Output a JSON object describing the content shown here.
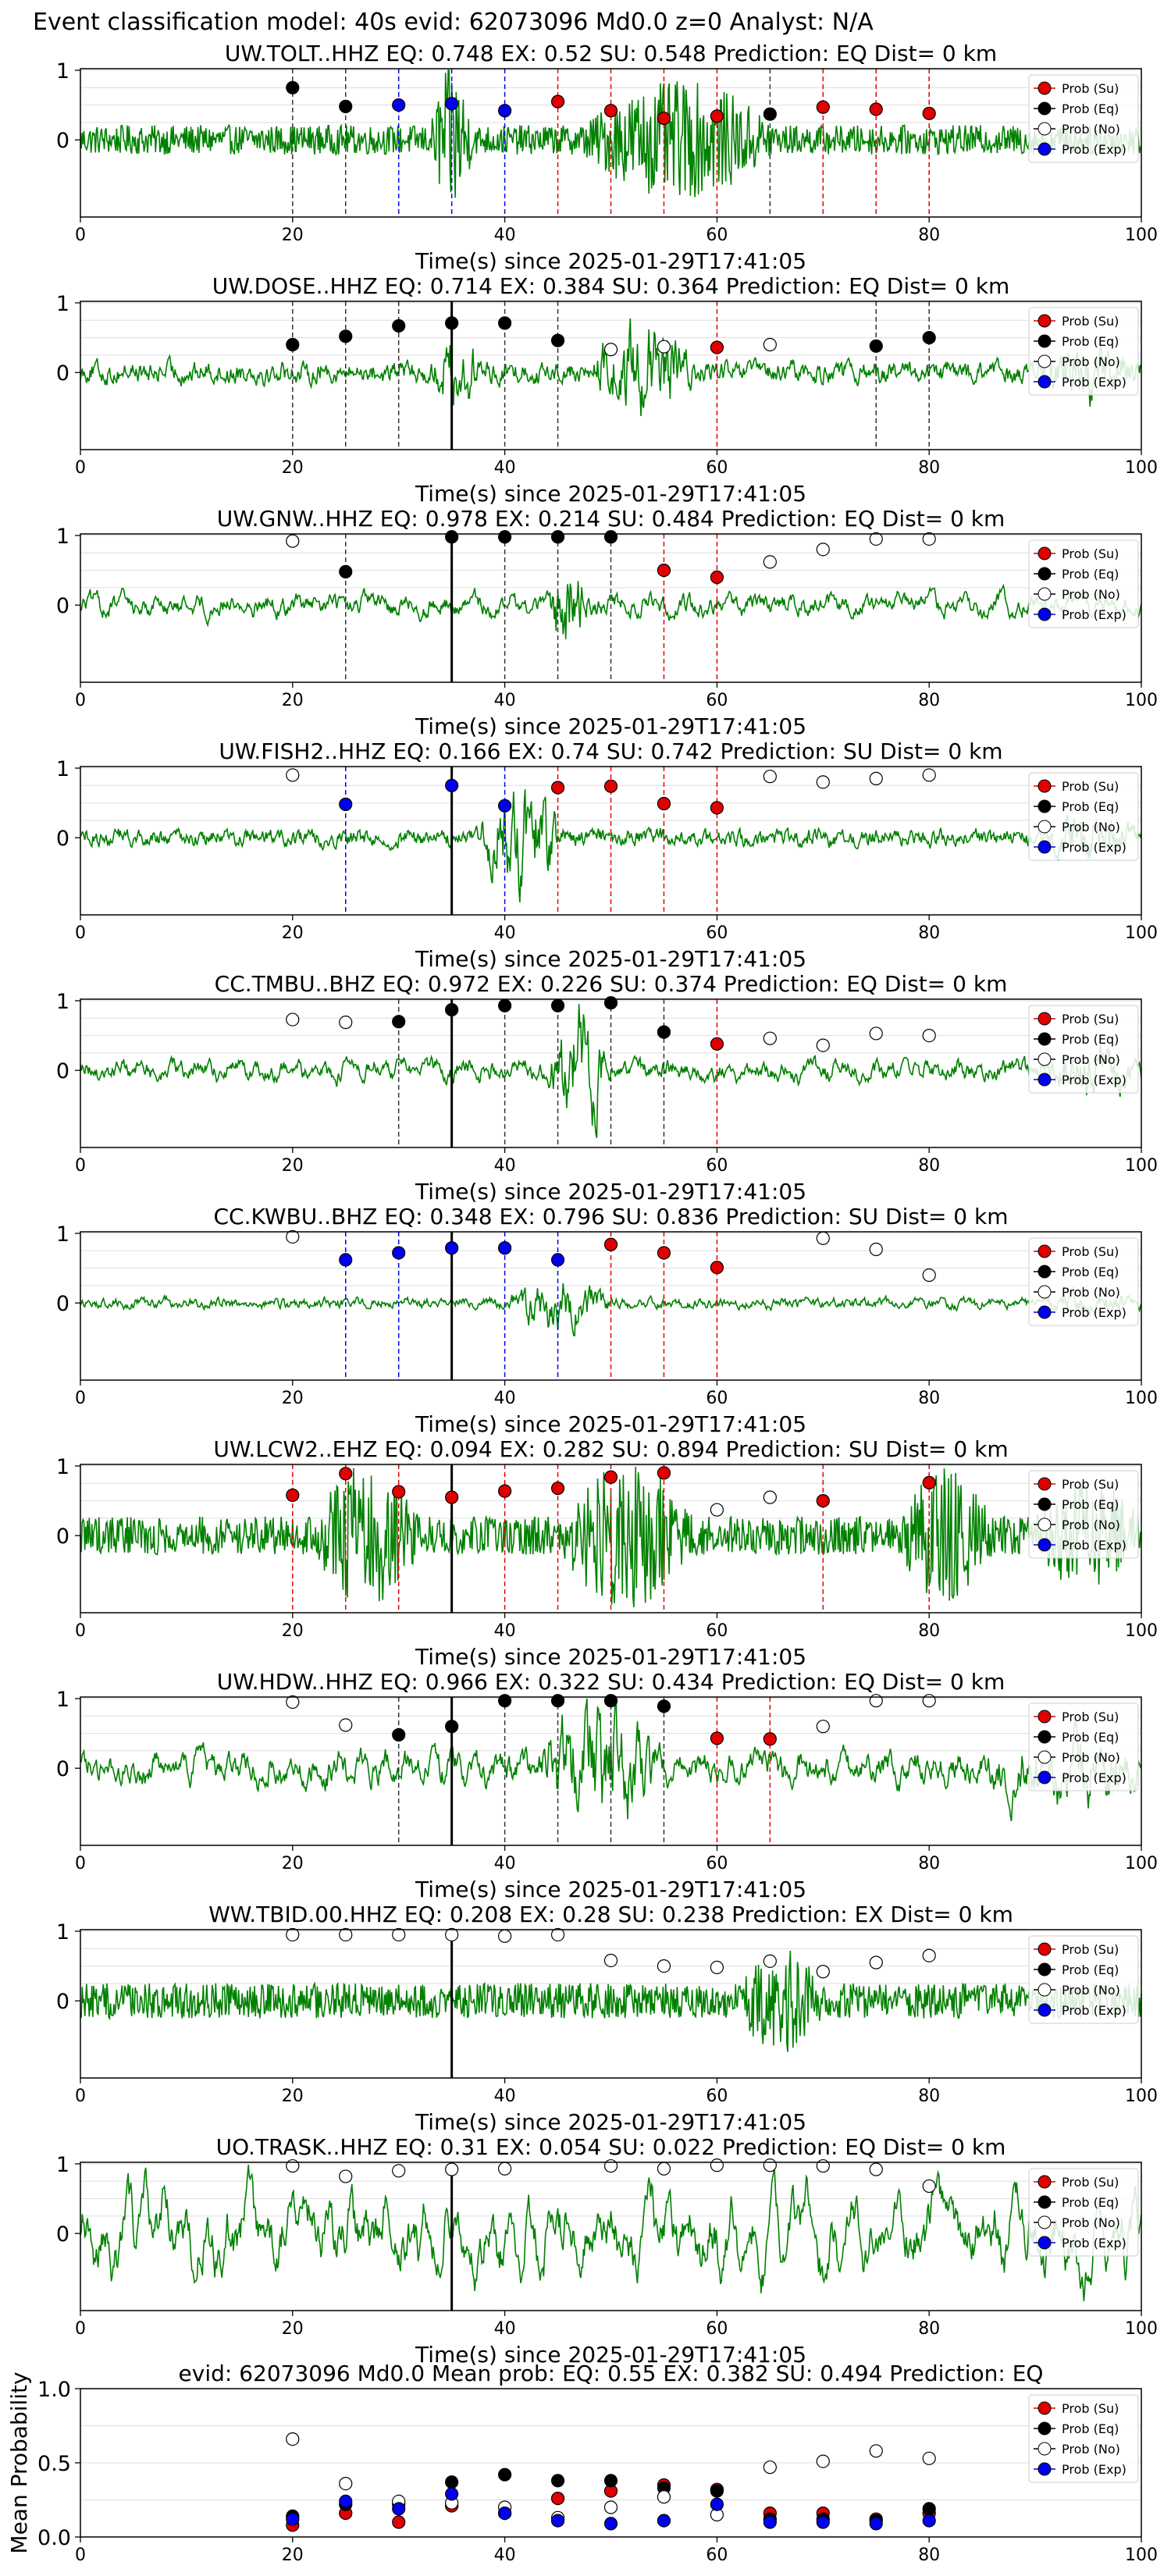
{
  "figure": {
    "title": "Event classification model: 40s evid: 62073096 Md0.0 z=0 Analyst: N/A",
    "colors": {
      "wave": "#008000",
      "su": "#e00000",
      "eq": "#000000",
      "no": "#ffffff",
      "exp": "#0000ee",
      "grid": "#dddddd"
    },
    "legend_labels": [
      "Prob (Su)",
      "Prob (Eq)",
      "Prob (No)",
      "Prob (Exp)"
    ],
    "xlabel": "Time(s) since 2025-01-29T17:41:05",
    "panel_yticks": [
      "0",
      "1"
    ],
    "mean_yticks": [
      "0.0",
      "0.5",
      "1.0"
    ],
    "xticks": [
      "0",
      "20",
      "40",
      "60",
      "80",
      "100"
    ]
  },
  "chart_data": [
    {
      "type": "line",
      "title": "UW.TOLT..HHZ   EQ: 0.748  EX: 0.52  SU: 0.548    Prediction: EQ    Dist= 0 km",
      "noise": 1.0,
      "smooth": 0,
      "bursts": [
        [
          33,
          37,
          4.2
        ],
        [
          47,
          66,
          3.0
        ]
      ],
      "points": [
        {
          "t": 20,
          "p": 0.75,
          "c": "eq"
        },
        {
          "t": 25,
          "p": 0.48,
          "c": "eq"
        },
        {
          "t": 30,
          "p": 0.5,
          "c": "exp"
        },
        {
          "t": 35,
          "p": 0.52,
          "c": "exp"
        },
        {
          "t": 40,
          "p": 0.42,
          "c": "exp"
        },
        {
          "t": 45,
          "p": 0.55,
          "c": "su"
        },
        {
          "t": 50,
          "p": 0.42,
          "c": "su"
        },
        {
          "t": 55,
          "p": 0.31,
          "c": "su"
        },
        {
          "t": 60,
          "p": 0.34,
          "c": "su"
        },
        {
          "t": 65,
          "p": 0.37,
          "c": "eq"
        },
        {
          "t": 70,
          "p": 0.47,
          "c": "su"
        },
        {
          "t": 75,
          "p": 0.44,
          "c": "su"
        },
        {
          "t": 80,
          "p": 0.38,
          "c": "su"
        }
      ]
    },
    {
      "type": "line",
      "title": "UW.DOSE..HHZ   EQ: 0.714  EX: 0.384  SU: 0.364    Prediction: EQ    Dist= 0 km",
      "noise": 0.9,
      "smooth": 1,
      "bursts": [
        [
          33,
          38,
          2.4
        ],
        [
          48,
          58,
          3.5
        ],
        [
          90,
          100,
          1.8
        ]
      ],
      "points": [
        {
          "t": 20,
          "p": 0.4,
          "c": "eq"
        },
        {
          "t": 25,
          "p": 0.52,
          "c": "eq"
        },
        {
          "t": 30,
          "p": 0.67,
          "c": "eq"
        },
        {
          "t": 35,
          "p": 0.71,
          "c": "eq"
        },
        {
          "t": 40,
          "p": 0.71,
          "c": "eq"
        },
        {
          "t": 45,
          "p": 0.46,
          "c": "eq"
        },
        {
          "t": 50,
          "p": 0.33,
          "c": "no"
        },
        {
          "t": 55,
          "p": 0.37,
          "c": "no"
        },
        {
          "t": 60,
          "p": 0.36,
          "c": "su"
        },
        {
          "t": 65,
          "p": 0.4,
          "c": "no"
        },
        {
          "t": 75,
          "p": 0.38,
          "c": "eq"
        },
        {
          "t": 80,
          "p": 0.5,
          "c": "eq"
        }
      ]
    },
    {
      "type": "line",
      "title": "UW.GNW..HHZ   EQ: 0.978  EX: 0.214  SU: 0.484    Prediction: EQ    Dist= 0 km",
      "noise": 0.6,
      "smooth": 3,
      "bursts": [
        [
          44,
          48,
          4.5
        ]
      ],
      "points": [
        {
          "t": 20,
          "p": 0.92,
          "c": "no"
        },
        {
          "t": 25,
          "p": 0.48,
          "c": "eq"
        },
        {
          "t": 35,
          "p": 0.98,
          "c": "eq"
        },
        {
          "t": 40,
          "p": 0.98,
          "c": "eq"
        },
        {
          "t": 45,
          "p": 0.98,
          "c": "eq"
        },
        {
          "t": 50,
          "p": 0.98,
          "c": "eq"
        },
        {
          "t": 55,
          "p": 0.5,
          "c": "su"
        },
        {
          "t": 60,
          "p": 0.4,
          "c": "su"
        },
        {
          "t": 65,
          "p": 0.62,
          "c": "no"
        },
        {
          "t": 70,
          "p": 0.8,
          "c": "no"
        },
        {
          "t": 75,
          "p": 0.95,
          "c": "no"
        },
        {
          "t": 80,
          "p": 0.95,
          "c": "no"
        }
      ]
    },
    {
      "type": "line",
      "title": "UW.FISH2..HHZ   EQ: 0.166  EX: 0.74  SU: 0.742    Prediction: SU    Dist= 0 km",
      "noise": 0.7,
      "smooth": 1,
      "bursts": [
        [
          37,
          46,
          4.8
        ],
        [
          90,
          100,
          1.6
        ]
      ],
      "points": [
        {
          "t": 20,
          "p": 0.9,
          "c": "no"
        },
        {
          "t": 25,
          "p": 0.48,
          "c": "exp"
        },
        {
          "t": 35,
          "p": 0.75,
          "c": "exp"
        },
        {
          "t": 40,
          "p": 0.46,
          "c": "exp"
        },
        {
          "t": 45,
          "p": 0.72,
          "c": "su"
        },
        {
          "t": 50,
          "p": 0.74,
          "c": "su"
        },
        {
          "t": 55,
          "p": 0.49,
          "c": "su"
        },
        {
          "t": 60,
          "p": 0.43,
          "c": "su"
        },
        {
          "t": 65,
          "p": 0.88,
          "c": "no"
        },
        {
          "t": 70,
          "p": 0.8,
          "c": "no"
        },
        {
          "t": 75,
          "p": 0.85,
          "c": "no"
        },
        {
          "t": 80,
          "p": 0.9,
          "c": "no"
        }
      ]
    },
    {
      "type": "line",
      "title": "CC.TMBU..BHZ   EQ: 0.972  EX: 0.226  SU: 0.374    Prediction: EQ    Dist= 0 km",
      "noise": 0.6,
      "smooth": 3,
      "bursts": [
        [
          44,
          50,
          5.0
        ],
        [
          90,
          100,
          1.5
        ]
      ],
      "points": [
        {
          "t": 20,
          "p": 0.73,
          "c": "no"
        },
        {
          "t": 25,
          "p": 0.69,
          "c": "no"
        },
        {
          "t": 30,
          "p": 0.7,
          "c": "eq"
        },
        {
          "t": 35,
          "p": 0.87,
          "c": "eq"
        },
        {
          "t": 40,
          "p": 0.93,
          "c": "eq"
        },
        {
          "t": 45,
          "p": 0.93,
          "c": "eq"
        },
        {
          "t": 50,
          "p": 0.97,
          "c": "eq"
        },
        {
          "t": 55,
          "p": 0.55,
          "c": "eq"
        },
        {
          "t": 60,
          "p": 0.38,
          "c": "su"
        },
        {
          "t": 65,
          "p": 0.46,
          "c": "no"
        },
        {
          "t": 70,
          "p": 0.36,
          "c": "no"
        },
        {
          "t": 75,
          "p": 0.53,
          "c": "no"
        },
        {
          "t": 80,
          "p": 0.5,
          "c": "no"
        }
      ]
    },
    {
      "type": "line",
      "title": "CC.KWBU..BHZ   EQ: 0.348  EX: 0.796  SU: 0.836    Prediction: SU    Dist= 0 km",
      "noise": 0.35,
      "smooth": 2,
      "bursts": [
        [
          40,
          50,
          4.0
        ],
        [
          90,
          100,
          1.2
        ]
      ],
      "points": [
        {
          "t": 20,
          "p": 0.95,
          "c": "no"
        },
        {
          "t": 25,
          "p": 0.62,
          "c": "exp"
        },
        {
          "t": 30,
          "p": 0.72,
          "c": "exp"
        },
        {
          "t": 35,
          "p": 0.79,
          "c": "exp"
        },
        {
          "t": 40,
          "p": 0.79,
          "c": "exp"
        },
        {
          "t": 45,
          "p": 0.62,
          "c": "exp"
        },
        {
          "t": 50,
          "p": 0.84,
          "c": "su"
        },
        {
          "t": 55,
          "p": 0.72,
          "c": "su"
        },
        {
          "t": 60,
          "p": 0.51,
          "c": "su"
        },
        {
          "t": 70,
          "p": 0.93,
          "c": "no"
        },
        {
          "t": 75,
          "p": 0.77,
          "c": "no"
        },
        {
          "t": 80,
          "p": 0.4,
          "c": "no"
        }
      ]
    },
    {
      "type": "line",
      "title": "UW.LCW2..EHZ   EQ: 0.094  EX: 0.282  SU: 0.894    Prediction: SU    Dist= 0 km",
      "noise": 1.3,
      "smooth": 0,
      "bursts": [
        [
          22,
          32,
          2.8
        ],
        [
          45,
          58,
          2.8
        ],
        [
          77,
          86,
          2.6
        ],
        [
          90,
          100,
          2.0
        ]
      ],
      "points": [
        {
          "t": 20,
          "p": 0.58,
          "c": "su"
        },
        {
          "t": 25,
          "p": 0.89,
          "c": "su"
        },
        {
          "t": 30,
          "p": 0.63,
          "c": "su"
        },
        {
          "t": 35,
          "p": 0.55,
          "c": "su"
        },
        {
          "t": 40,
          "p": 0.64,
          "c": "su"
        },
        {
          "t": 45,
          "p": 0.68,
          "c": "su"
        },
        {
          "t": 50,
          "p": 0.84,
          "c": "su"
        },
        {
          "t": 55,
          "p": 0.9,
          "c": "su"
        },
        {
          "t": 60,
          "p": 0.37,
          "c": "no"
        },
        {
          "t": 65,
          "p": 0.55,
          "c": "no"
        },
        {
          "t": 70,
          "p": 0.5,
          "c": "su"
        },
        {
          "t": 80,
          "p": 0.76,
          "c": "su"
        }
      ]
    },
    {
      "type": "line",
      "title": "UW.HDW..HHZ   EQ: 0.966  EX: 0.322  SU: 0.434    Prediction: EQ    Dist= 0 km",
      "noise": 0.9,
      "smooth": 3,
      "bursts": [
        [
          43,
          55,
          3.2
        ],
        [
          85,
          100,
          1.5
        ]
      ],
      "points": [
        {
          "t": 20,
          "p": 0.95,
          "c": "no"
        },
        {
          "t": 25,
          "p": 0.62,
          "c": "no"
        },
        {
          "t": 30,
          "p": 0.48,
          "c": "eq"
        },
        {
          "t": 35,
          "p": 0.6,
          "c": "eq"
        },
        {
          "t": 40,
          "p": 0.97,
          "c": "eq"
        },
        {
          "t": 45,
          "p": 0.97,
          "c": "eq"
        },
        {
          "t": 50,
          "p": 0.97,
          "c": "eq"
        },
        {
          "t": 55,
          "p": 0.89,
          "c": "eq"
        },
        {
          "t": 60,
          "p": 0.43,
          "c": "su"
        },
        {
          "t": 65,
          "p": 0.42,
          "c": "su"
        },
        {
          "t": 70,
          "p": 0.6,
          "c": "no"
        },
        {
          "t": 75,
          "p": 0.97,
          "c": "no"
        },
        {
          "t": 80,
          "p": 0.97,
          "c": "no"
        }
      ]
    },
    {
      "type": "line",
      "title": "WW.TBID.00.HHZ   EQ: 0.208  EX: 0.28  SU: 0.238    Prediction: EX    Dist= 0 km",
      "noise": 1.2,
      "smooth": 0,
      "bursts": [
        [
          62,
          70,
          2.0
        ]
      ],
      "points": [
        {
          "t": 20,
          "p": 0.95,
          "c": "no"
        },
        {
          "t": 25,
          "p": 0.95,
          "c": "no"
        },
        {
          "t": 30,
          "p": 0.95,
          "c": "no"
        },
        {
          "t": 35,
          "p": 0.95,
          "c": "no"
        },
        {
          "t": 40,
          "p": 0.93,
          "c": "no"
        },
        {
          "t": 45,
          "p": 0.95,
          "c": "no"
        },
        {
          "t": 50,
          "p": 0.58,
          "c": "no"
        },
        {
          "t": 55,
          "p": 0.5,
          "c": "no"
        },
        {
          "t": 60,
          "p": 0.48,
          "c": "no"
        },
        {
          "t": 65,
          "p": 0.57,
          "c": "no"
        },
        {
          "t": 70,
          "p": 0.42,
          "c": "no"
        },
        {
          "t": 75,
          "p": 0.55,
          "c": "no"
        },
        {
          "t": 80,
          "p": 0.65,
          "c": "no"
        }
      ]
    },
    {
      "type": "line",
      "title": "UO.TRASK..HHZ   EQ: 0.31  EX: 0.054  SU: 0.022    Prediction: EQ    Dist= 0 km",
      "noise": 1.5,
      "smooth": 5,
      "bursts": [],
      "points": [
        {
          "t": 20,
          "p": 0.97,
          "c": "no"
        },
        {
          "t": 25,
          "p": 0.82,
          "c": "no"
        },
        {
          "t": 30,
          "p": 0.9,
          "c": "no"
        },
        {
          "t": 35,
          "p": 0.92,
          "c": "no"
        },
        {
          "t": 40,
          "p": 0.93,
          "c": "no"
        },
        {
          "t": 50,
          "p": 0.97,
          "c": "no"
        },
        {
          "t": 55,
          "p": 0.93,
          "c": "no"
        },
        {
          "t": 60,
          "p": 0.98,
          "c": "no"
        },
        {
          "t": 65,
          "p": 0.98,
          "c": "no"
        },
        {
          "t": 70,
          "p": 0.97,
          "c": "no"
        },
        {
          "t": 75,
          "p": 0.92,
          "c": "no"
        },
        {
          "t": 80,
          "p": 0.68,
          "c": "no"
        }
      ]
    },
    {
      "type": "scatter",
      "title": "evid: 62073096  Md0.0    Mean prob:    EQ: 0.55  EX: 0.382  SU: 0.494    Prediction: EQ",
      "ylabel": "Mean Probability",
      "ylim": [
        0,
        1
      ],
      "series": [
        {
          "name": "Prob (Su)",
          "c": "su",
          "x": [
            20,
            25,
            30,
            35,
            40,
            45,
            50,
            55,
            60,
            65,
            70,
            75,
            80
          ],
          "values": [
            0.08,
            0.16,
            0.1,
            0.21,
            0.16,
            0.26,
            0.31,
            0.35,
            0.32,
            0.16,
            0.16,
            0.12,
            0.16
          ]
        },
        {
          "name": "Prob (Eq)",
          "c": "eq",
          "x": [
            20,
            25,
            30,
            35,
            40,
            45,
            50,
            55,
            60,
            65,
            70,
            75,
            80
          ],
          "values": [
            0.14,
            0.22,
            0.22,
            0.37,
            0.42,
            0.38,
            0.38,
            0.33,
            0.31,
            0.12,
            0.12,
            0.11,
            0.19
          ]
        },
        {
          "name": "Prob (No)",
          "c": "no",
          "x": [
            20,
            25,
            30,
            35,
            40,
            45,
            50,
            55,
            60,
            65,
            70,
            75,
            80
          ],
          "values": [
            0.66,
            0.36,
            0.24,
            0.23,
            0.2,
            0.13,
            0.2,
            0.27,
            0.15,
            0.47,
            0.51,
            0.58,
            0.53
          ]
        },
        {
          "name": "Prob (Exp)",
          "c": "exp",
          "x": [
            20,
            25,
            30,
            35,
            40,
            45,
            50,
            55,
            60,
            65,
            70,
            75,
            80
          ],
          "values": [
            0.12,
            0.24,
            0.19,
            0.29,
            0.16,
            0.11,
            0.09,
            0.11,
            0.22,
            0.1,
            0.1,
            0.09,
            0.11
          ]
        }
      ]
    }
  ]
}
